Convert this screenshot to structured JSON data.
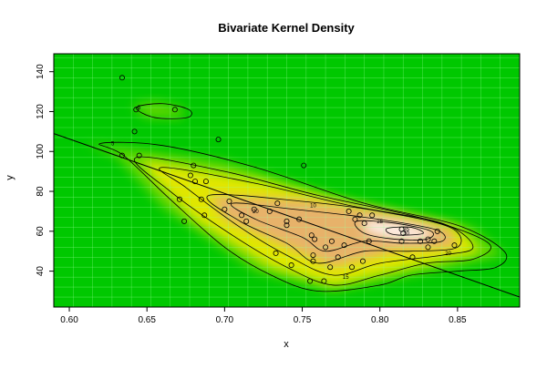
{
  "chart_data": {
    "type": "heatmap",
    "title": "Bivariate Kernel Density",
    "xlabel": "x",
    "ylabel": "y",
    "xlim": [
      0.59,
      0.89
    ],
    "ylim": [
      22,
      149
    ],
    "x_ticks": [
      "0.60",
      "0.65",
      "0.70",
      "0.75",
      "0.80",
      "0.85"
    ],
    "x_tick_values": [
      0.6,
      0.65,
      0.7,
      0.75,
      0.8,
      0.85
    ],
    "y_ticks": [
      "40",
      "60",
      "80",
      "100",
      "120",
      "140"
    ],
    "y_tick_values": [
      40,
      60,
      80,
      100,
      120,
      140
    ],
    "grid": true,
    "colors": {
      "background": "#00c800",
      "low": "#00c000",
      "mid_low": "#66d800",
      "mid": "#e8e800",
      "high": "#e8b070",
      "peak": "#fff4f4",
      "grid": "#9cff9c",
      "contour": "#000000",
      "fit_line": "#000000",
      "point": "#000000"
    },
    "contour_labels": [
      {
        "text": "5",
        "x": 0.628,
        "y": 104
      },
      {
        "text": "5",
        "x": 0.645,
        "y": 122
      },
      {
        "text": "10",
        "x": 0.757,
        "y": 73
      },
      {
        "text": "15",
        "x": 0.778,
        "y": 37
      },
      {
        "text": "20",
        "x": 0.72,
        "y": 70
      },
      {
        "text": "20",
        "x": 0.844,
        "y": 49
      },
      {
        "text": "25",
        "x": 0.8,
        "y": 65
      },
      {
        "text": "30",
        "x": 0.817,
        "y": 59
      },
      {
        "text": "35",
        "x": 0.817,
        "y": 61
      }
    ],
    "regression_line": {
      "x": [
        0.59,
        0.89
      ],
      "y": [
        109,
        27
      ]
    },
    "points": [
      {
        "x": 0.634,
        "y": 137
      },
      {
        "x": 0.643,
        "y": 121
      },
      {
        "x": 0.668,
        "y": 121
      },
      {
        "x": 0.642,
        "y": 110
      },
      {
        "x": 0.696,
        "y": 106
      },
      {
        "x": 0.634,
        "y": 98
      },
      {
        "x": 0.645,
        "y": 98
      },
      {
        "x": 0.751,
        "y": 93
      },
      {
        "x": 0.68,
        "y": 93
      },
      {
        "x": 0.678,
        "y": 88
      },
      {
        "x": 0.681,
        "y": 85
      },
      {
        "x": 0.688,
        "y": 85
      },
      {
        "x": 0.671,
        "y": 76
      },
      {
        "x": 0.685,
        "y": 76
      },
      {
        "x": 0.703,
        "y": 75
      },
      {
        "x": 0.734,
        "y": 74
      },
      {
        "x": 0.7,
        "y": 71
      },
      {
        "x": 0.719,
        "y": 71
      },
      {
        "x": 0.729,
        "y": 70
      },
      {
        "x": 0.78,
        "y": 70
      },
      {
        "x": 0.711,
        "y": 68
      },
      {
        "x": 0.687,
        "y": 68
      },
      {
        "x": 0.748,
        "y": 66
      },
      {
        "x": 0.714,
        "y": 65
      },
      {
        "x": 0.674,
        "y": 65
      },
      {
        "x": 0.74,
        "y": 65
      },
      {
        "x": 0.74,
        "y": 63
      },
      {
        "x": 0.784,
        "y": 66
      },
      {
        "x": 0.79,
        "y": 64
      },
      {
        "x": 0.787,
        "y": 68
      },
      {
        "x": 0.795,
        "y": 68
      },
      {
        "x": 0.814,
        "y": 61
      },
      {
        "x": 0.815,
        "y": 59
      },
      {
        "x": 0.837,
        "y": 60
      },
      {
        "x": 0.756,
        "y": 58
      },
      {
        "x": 0.758,
        "y": 56
      },
      {
        "x": 0.769,
        "y": 55
      },
      {
        "x": 0.793,
        "y": 55
      },
      {
        "x": 0.814,
        "y": 55
      },
      {
        "x": 0.826,
        "y": 55
      },
      {
        "x": 0.831,
        "y": 56
      },
      {
        "x": 0.835,
        "y": 55
      },
      {
        "x": 0.777,
        "y": 53
      },
      {
        "x": 0.765,
        "y": 52
      },
      {
        "x": 0.831,
        "y": 52
      },
      {
        "x": 0.848,
        "y": 53
      },
      {
        "x": 0.733,
        "y": 49
      },
      {
        "x": 0.757,
        "y": 48
      },
      {
        "x": 0.773,
        "y": 47
      },
      {
        "x": 0.821,
        "y": 47
      },
      {
        "x": 0.757,
        "y": 45
      },
      {
        "x": 0.789,
        "y": 45
      },
      {
        "x": 0.743,
        "y": 43
      },
      {
        "x": 0.768,
        "y": 42
      },
      {
        "x": 0.782,
        "y": 42
      },
      {
        "x": 0.755,
        "y": 35
      },
      {
        "x": 0.764,
        "y": 35
      }
    ]
  }
}
